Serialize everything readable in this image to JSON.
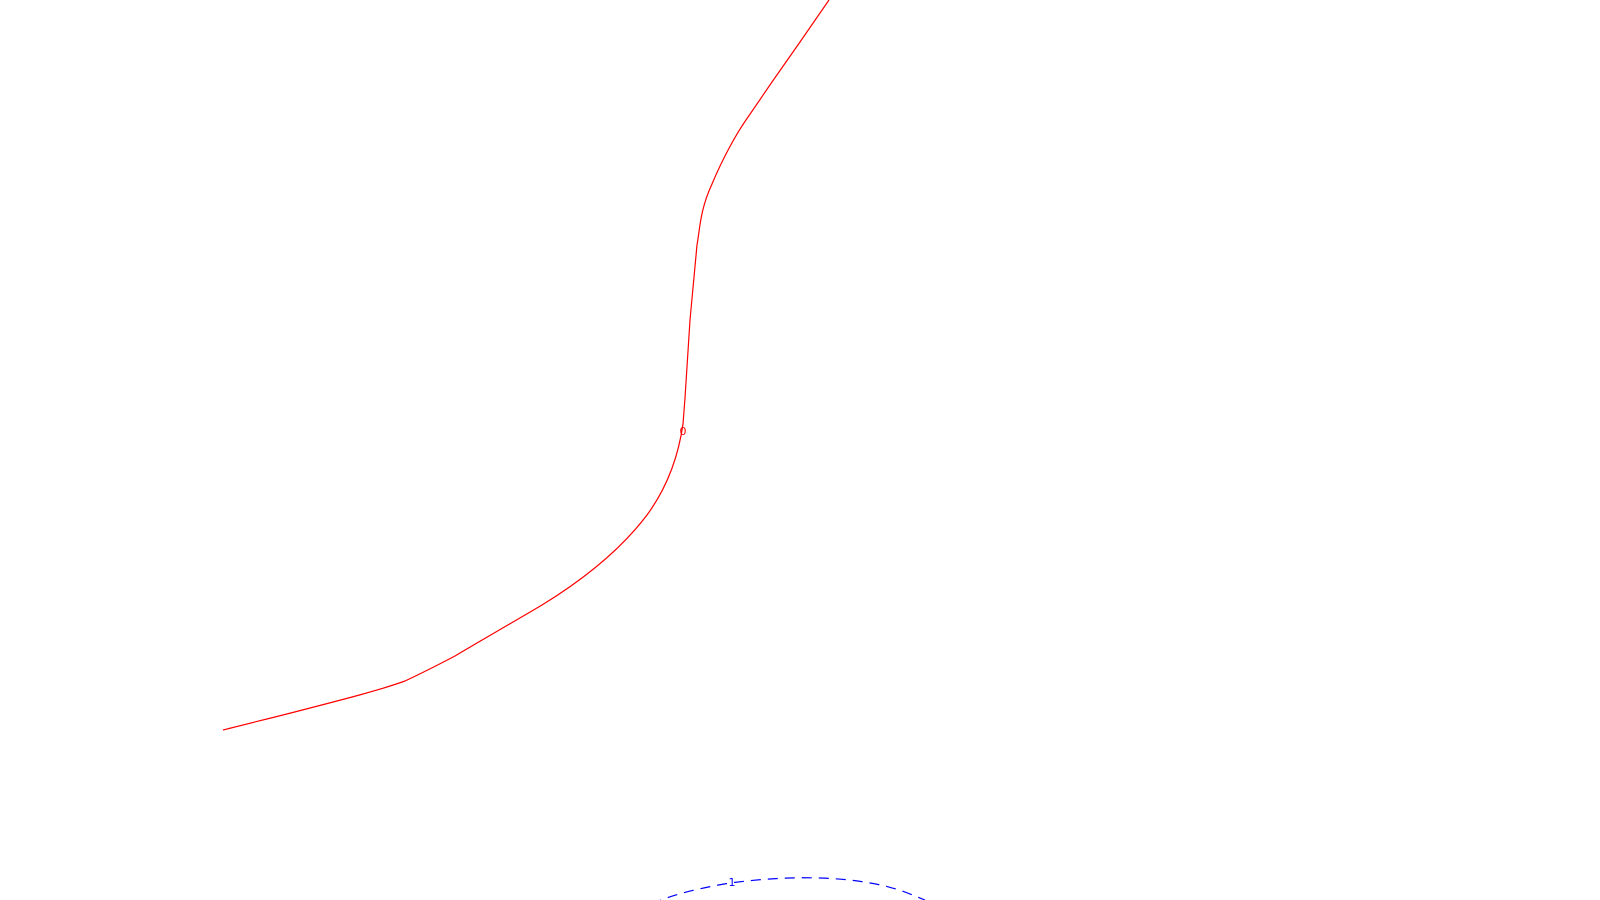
{
  "canvas": {
    "background": "#ffffff"
  },
  "contours": [
    {
      "level_label": "0",
      "color": "#ff0000",
      "style": "solid"
    },
    {
      "level_label": "1",
      "color": "#0000ff",
      "style": "dashed"
    }
  ]
}
